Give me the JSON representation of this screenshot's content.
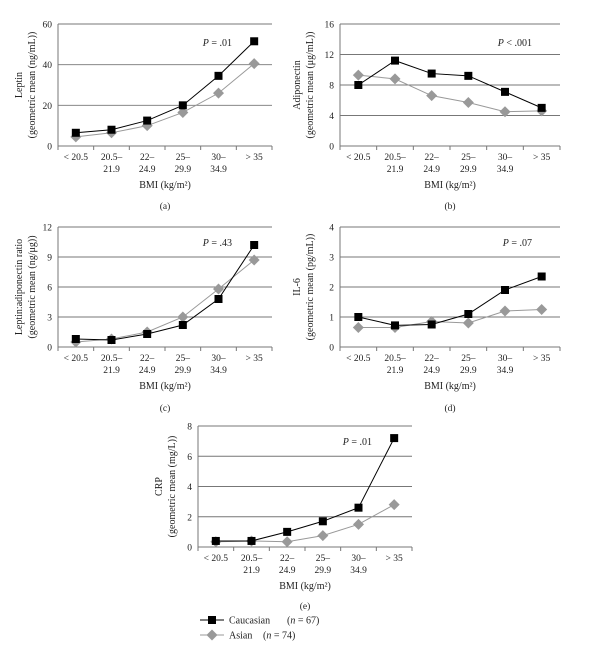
{
  "chart_data": [
    {
      "type": "line",
      "panel": "(a)",
      "ylabel": [
        "Leptin",
        "(geometric mean (ng/mL))"
      ],
      "xlabel": "BMI (kg/m²)",
      "categories": [
        "< 20.5",
        "20.5–21.9",
        "22–24.9",
        "25–29.9",
        "30–34.9",
        "> 35"
      ],
      "yticks": [
        "0",
        "20",
        "40",
        "60"
      ],
      "ylim": [
        0,
        60
      ],
      "pvalue": "P = .01",
      "series": [
        {
          "name": "Caucasian (n = 67)",
          "marker": "square",
          "color": "#000000",
          "values": [
            6.5,
            8,
            12.5,
            20,
            34.5,
            51.5
          ]
        },
        {
          "name": "Asian (n = 74)",
          "marker": "diamond",
          "color": "#999999",
          "values": [
            4.5,
            6.5,
            10,
            16.5,
            26,
            40.5
          ]
        }
      ]
    },
    {
      "type": "line",
      "panel": "(b)",
      "ylabel": [
        "Adiponectin",
        "(geometric mean (μg/mL))"
      ],
      "xlabel": "BMI (kg/m²)",
      "categories": [
        "< 20.5",
        "20.5–21.9",
        "22–24.9",
        "25–29.9",
        "30–34.9",
        "> 35"
      ],
      "yticks": [
        "0",
        "4",
        "8",
        "12",
        "16"
      ],
      "ylim": [
        0,
        16
      ],
      "pvalue": "P < .001",
      "series": [
        {
          "name": "Caucasian (n = 67)",
          "marker": "square",
          "color": "#000000",
          "values": [
            8,
            11.2,
            9.5,
            9.2,
            7.1,
            5.0
          ]
        },
        {
          "name": "Asian (n = 74)",
          "marker": "diamond",
          "color": "#999999",
          "values": [
            9.3,
            8.8,
            6.6,
            5.7,
            4.5,
            4.6
          ]
        }
      ]
    },
    {
      "type": "line",
      "panel": "(c)",
      "ylabel": [
        "Leptin:adiponectin ratio",
        "(geometric mean (ng/μg))"
      ],
      "xlabel": "BMI (kg/m²)",
      "categories": [
        "< 20.5",
        "20.5–21.9",
        "22–24.9",
        "25–29.9",
        "30–34.9",
        "> 35"
      ],
      "yticks": [
        "0",
        "3",
        "6",
        "9",
        "12"
      ],
      "ylim": [
        0,
        12
      ],
      "pvalue": "P = .43",
      "series": [
        {
          "name": "Caucasian (n = 67)",
          "marker": "square",
          "color": "#000000",
          "values": [
            0.8,
            0.7,
            1.3,
            2.2,
            4.8,
            10.2
          ]
        },
        {
          "name": "Asian (n = 74)",
          "marker": "diamond",
          "color": "#999999",
          "values": [
            0.5,
            0.8,
            1.5,
            3.0,
            5.8,
            8.7
          ]
        }
      ]
    },
    {
      "type": "line",
      "panel": "(d)",
      "ylabel": [
        "IL-6",
        "(geometric mean (pg/mL))"
      ],
      "xlabel": "BMI (kg/m²)",
      "categories": [
        "< 20.5",
        "20.5–21.9",
        "22–24.9",
        "25–29.9",
        "30–34.9",
        "> 35"
      ],
      "yticks": [
        "0",
        "1",
        "2",
        "3",
        "4"
      ],
      "ylim": [
        0,
        4
      ],
      "pvalue": "P = .07",
      "series": [
        {
          "name": "Caucasian (n = 67)",
          "marker": "square",
          "color": "#000000",
          "values": [
            1.0,
            0.72,
            0.75,
            1.1,
            1.9,
            2.35
          ]
        },
        {
          "name": "Asian (n = 74)",
          "marker": "diamond",
          "color": "#999999",
          "values": [
            0.65,
            0.65,
            0.85,
            0.8,
            1.2,
            1.25
          ]
        }
      ]
    },
    {
      "type": "line",
      "panel": "(e)",
      "ylabel": [
        "CRP",
        "(geometric mean (mg/L))"
      ],
      "xlabel": "BMI (kg/m²)",
      "categories": [
        "< 20.5",
        "20.5–21.9",
        "22–24.9",
        "25–29.9",
        "30–34.9",
        "> 35"
      ],
      "yticks": [
        "0",
        "2",
        "4",
        "6",
        "8"
      ],
      "ylim": [
        0,
        8
      ],
      "pvalue": "P = .01",
      "series": [
        {
          "name": "Caucasian (n = 67)",
          "marker": "square",
          "color": "#000000",
          "values": [
            0.4,
            0.4,
            1.0,
            1.7,
            2.6,
            7.2
          ]
        },
        {
          "name": "Asian (n = 74)",
          "marker": "diamond",
          "color": "#999999",
          "values": [
            0.35,
            0.4,
            0.35,
            0.75,
            1.5,
            2.8
          ]
        }
      ]
    }
  ],
  "legend": [
    {
      "label": "Caucasian",
      "n_text": "(n = 67)",
      "marker": "square",
      "color": "#000000"
    },
    {
      "label": "Asian",
      "n_text": "(n = 74)",
      "marker": "diamond",
      "color": "#999999"
    }
  ],
  "colors": {
    "gridline": "#777777",
    "axis": "#777777",
    "caucasian": "#000000",
    "asian": "#999999"
  }
}
